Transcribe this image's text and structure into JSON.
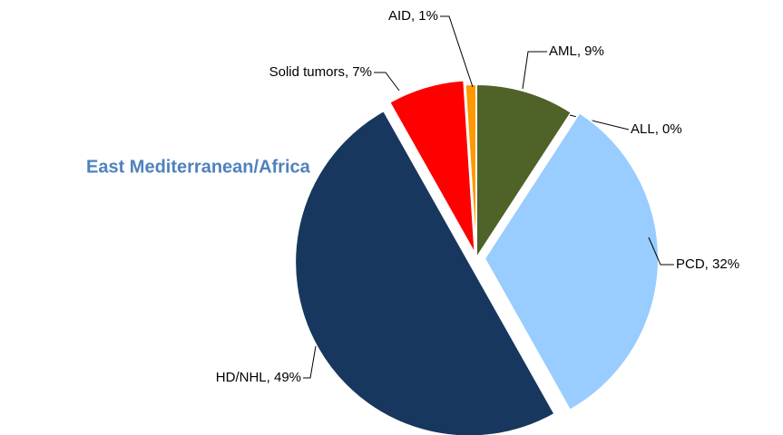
{
  "chart_data": {
    "type": "pie",
    "title": "East Mediterranean/Africa",
    "values": [
      9,
      0,
      32,
      49,
      7,
      1
    ],
    "value_labels": [
      "AML, 9%",
      "ALL, 0%",
      "PCD, 32%",
      "HD/NHL, 49%",
      "Solid tumors, 7%",
      "AID, 1%"
    ],
    "colors": [
      "#4f6228",
      "#c3d69b",
      "#99ccff",
      "#17375e",
      "#ff0000",
      "#ff9900"
    ]
  }
}
